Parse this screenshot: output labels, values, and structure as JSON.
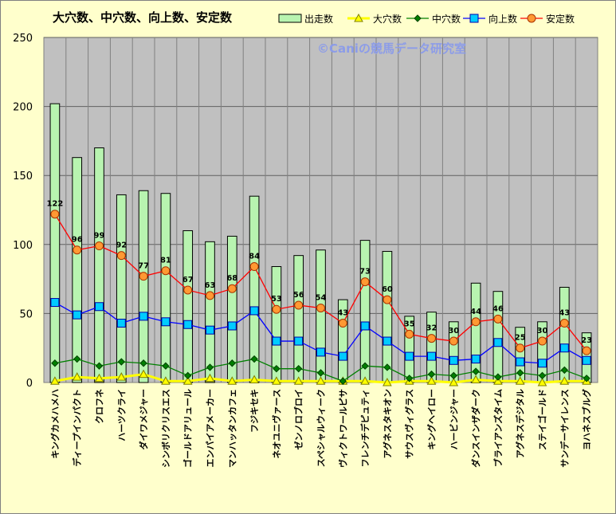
{
  "chart_data": {
    "type": "bar",
    "title": "大穴数、中穴数、向上数、安定数",
    "watermark": "©Caniの競馬データ研究室",
    "categories": [
      "キングカメハメハ",
      "ディープインパクト",
      "クロフネ",
      "ハーツクライ",
      "ダイワメジャー",
      "シンボリクリスエス",
      "ゴールドアリュール",
      "エンパイアメーカー",
      "マンハッタンカフェ",
      "フジキセキ",
      "ネオユニヴァース",
      "ゼンノロブロイ",
      "スペシャルウィーク",
      "ヴィクトワールピサ",
      "フレンチデピュティ",
      "アグネスタキオン",
      "サウスヴィグラス",
      "キングヘイロー",
      "ハービンジャー",
      "ダンスインザダーク",
      "ブライアンズタイム",
      "アグネスデジタル",
      "ステイゴールド",
      "サンデーサイレンス",
      "ヨハネスブルグ"
    ],
    "ylim": [
      0,
      250
    ],
    "yticks": [
      0,
      50,
      100,
      150,
      200,
      250
    ],
    "grid": true,
    "legend_position": "top",
    "series": [
      {
        "name": "出走数",
        "kind": "bar",
        "color": "#b8f4b0",
        "edge": "#000000",
        "values": [
          202,
          163,
          170,
          136,
          139,
          137,
          110,
          102,
          106,
          135,
          84,
          92,
          96,
          60,
          103,
          95,
          48,
          51,
          44,
          72,
          66,
          40,
          44,
          69,
          36
        ]
      },
      {
        "name": "大穴数",
        "kind": "line",
        "color": "#ffff00",
        "marker": "triangle",
        "values": [
          1,
          4,
          3,
          4,
          6,
          1,
          1,
          3,
          1,
          2,
          1,
          1,
          1,
          1,
          1,
          0,
          1,
          1,
          0,
          2,
          1,
          1,
          0,
          1,
          1
        ]
      },
      {
        "name": "中穴数",
        "kind": "line",
        "color": "#008000",
        "marker": "diamond",
        "values": [
          14,
          17,
          12,
          15,
          14,
          12,
          5,
          11,
          14,
          17,
          10,
          10,
          7,
          1,
          12,
          11,
          3,
          6,
          5,
          8,
          4,
          7,
          5,
          9,
          3
        ]
      },
      {
        "name": "向上数",
        "kind": "line",
        "color": "#0000ff",
        "marker": "square",
        "marker_fill": "#00ccff",
        "values": [
          58,
          49,
          55,
          43,
          48,
          44,
          42,
          38,
          41,
          52,
          30,
          30,
          22,
          19,
          41,
          30,
          19,
          19,
          16,
          17,
          29,
          15,
          14,
          25,
          16
        ]
      },
      {
        "name": "安定数",
        "kind": "line",
        "color": "#ff0000",
        "marker": "circle",
        "marker_fill": "#ff9933",
        "values": [
          122,
          96,
          99,
          92,
          77,
          81,
          67,
          63,
          68,
          84,
          53,
          56,
          54,
          43,
          73,
          60,
          35,
          32,
          30,
          44,
          46,
          25,
          30,
          43,
          23
        ],
        "data_labels": true
      }
    ]
  }
}
